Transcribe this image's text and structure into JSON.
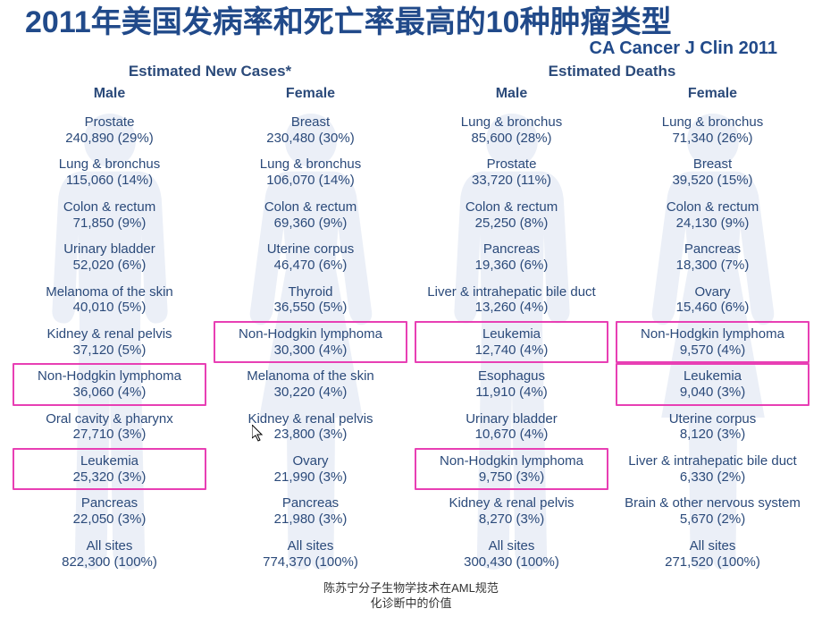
{
  "colors": {
    "title_color": "#214a8a",
    "title_bg": "#ffffff",
    "subtitle_color": "#214a8a",
    "header_color": "#2b4a7a",
    "text_color": "#2b4a7a",
    "silhouette_fill": "#dfe6f2",
    "highlight_border": "#e83fb4"
  },
  "typography": {
    "title_fontsize": 34,
    "subtitle_fontsize": 20,
    "panel_header_fontsize": 17,
    "col_header_fontsize": 16,
    "cell_fontsize": 15
  },
  "layout": {
    "silhouette_width": 170,
    "silhouette_height": 520
  },
  "title": "2011年美国发病率和死亡率最高的10种肿瘤类型",
  "subtitle": "CA Cancer J Clin 2011",
  "footer": "陈苏宁分子生物学技术在AML规范\n化诊断中的价值",
  "panels": [
    {
      "header": "Estimated New Cases*",
      "columns": [
        {
          "header": "Male",
          "silhouette": "male",
          "rows": [
            {
              "name": "Prostate",
              "val": "240,890 (29%)",
              "hl": false
            },
            {
              "name": "Lung & bronchus",
              "val": "115,060 (14%)",
              "hl": false
            },
            {
              "name": "Colon & rectum",
              "val": "71,850 (9%)",
              "hl": false
            },
            {
              "name": "Urinary bladder",
              "val": "52,020 (6%)",
              "hl": false
            },
            {
              "name": "Melanoma of the skin",
              "val": "40,010 (5%)",
              "hl": false
            },
            {
              "name": "Kidney & renal pelvis",
              "val": "37,120 (5%)",
              "hl": false
            },
            {
              "name": "Non-Hodgkin lymphoma",
              "val": "36,060 (4%)",
              "hl": true
            },
            {
              "name": "Oral cavity & pharynx",
              "val": "27,710 (3%)",
              "hl": false
            },
            {
              "name": "Leukemia",
              "val": "25,320 (3%)",
              "hl": true
            },
            {
              "name": "Pancreas",
              "val": "22,050 (3%)",
              "hl": false
            },
            {
              "name": "All sites",
              "val": "822,300 (100%)",
              "hl": false
            }
          ]
        },
        {
          "header": "Female",
          "silhouette": "female",
          "rows": [
            {
              "name": "Breast",
              "val": "230,480 (30%)",
              "hl": false
            },
            {
              "name": "Lung & bronchus",
              "val": "106,070 (14%)",
              "hl": false
            },
            {
              "name": "Colon & rectum",
              "val": "69,360 (9%)",
              "hl": false
            },
            {
              "name": "Uterine corpus",
              "val": "46,470 (6%)",
              "hl": false
            },
            {
              "name": "Thyroid",
              "val": "36,550 (5%)",
              "hl": false
            },
            {
              "name": "Non-Hodgkin lymphoma",
              "val": "30,300 (4%)",
              "hl": true
            },
            {
              "name": "Melanoma of the skin",
              "val": "30,220 (4%)",
              "hl": false
            },
            {
              "name": "Kidney & renal pelvis",
              "val": "23,800 (3%)",
              "hl": false
            },
            {
              "name": "Ovary",
              "val": "21,990 (3%)",
              "hl": false
            },
            {
              "name": "Pancreas",
              "val": "21,980 (3%)",
              "hl": false
            },
            {
              "name": "All sites",
              "val": "774,370 (100%)",
              "hl": false
            }
          ]
        }
      ]
    },
    {
      "header": "Estimated Deaths",
      "columns": [
        {
          "header": "Male",
          "silhouette": "male",
          "rows": [
            {
              "name": "Lung & bronchus",
              "val": "85,600 (28%)",
              "hl": false
            },
            {
              "name": "Prostate",
              "val": "33,720 (11%)",
              "hl": false
            },
            {
              "name": "Colon & rectum",
              "val": "25,250 (8%)",
              "hl": false
            },
            {
              "name": "Pancreas",
              "val": "19,360 (6%)",
              "hl": false
            },
            {
              "name": "Liver & intrahepatic bile duct",
              "val": "13,260 (4%)",
              "hl": false
            },
            {
              "name": "Leukemia",
              "val": "12,740 (4%)",
              "hl": true
            },
            {
              "name": "Esophagus",
              "val": "11,910 (4%)",
              "hl": false
            },
            {
              "name": "Urinary bladder",
              "val": "10,670 (4%)",
              "hl": false
            },
            {
              "name": "Non-Hodgkin lymphoma",
              "val": "9,750 (3%)",
              "hl": true
            },
            {
              "name": "Kidney & renal pelvis",
              "val": "8,270 (3%)",
              "hl": false
            },
            {
              "name": "All sites",
              "val": "300,430 (100%)",
              "hl": false
            }
          ]
        },
        {
          "header": "Female",
          "silhouette": "female",
          "rows": [
            {
              "name": "Lung & bronchus",
              "val": "71,340 (26%)",
              "hl": false
            },
            {
              "name": "Breast",
              "val": "39,520 (15%)",
              "hl": false
            },
            {
              "name": "Colon & rectum",
              "val": "24,130 (9%)",
              "hl": false
            },
            {
              "name": "Pancreas",
              "val": "18,300 (7%)",
              "hl": false
            },
            {
              "name": "Ovary",
              "val": "15,460 (6%)",
              "hl": false
            },
            {
              "name": "Non-Hodgkin lymphoma",
              "val": "9,570 (4%)",
              "hl": true
            },
            {
              "name": "Leukemia",
              "val": "9,040 (3%)",
              "hl": true
            },
            {
              "name": "Uterine corpus",
              "val": "8,120 (3%)",
              "hl": false
            },
            {
              "name": "Liver & intrahepatic bile duct",
              "val": "6,330 (2%)",
              "hl": false
            },
            {
              "name": "Brain & other nervous system",
              "val": "5,670 (2%)",
              "hl": false
            },
            {
              "name": "All sites",
              "val": "271,520 (100%)",
              "hl": false
            }
          ]
        }
      ]
    }
  ]
}
